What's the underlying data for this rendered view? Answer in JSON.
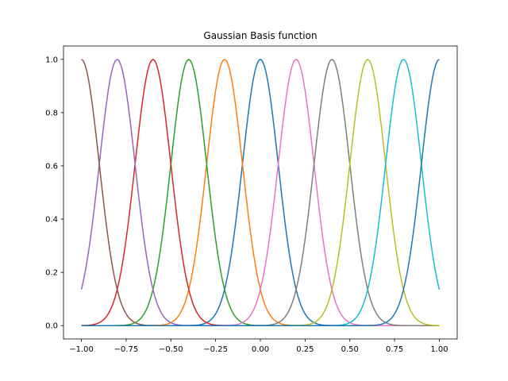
{
  "chart_data": {
    "type": "line",
    "title": "Gaussian Basis function",
    "xlabel": "",
    "ylabel": "",
    "xlim": [
      -1.1,
      1.1
    ],
    "ylim": [
      -0.05,
      1.05
    ],
    "x_ticks": [
      -1.0,
      -0.75,
      -0.5,
      -0.25,
      0.0,
      0.25,
      0.5,
      0.75,
      1.0
    ],
    "x_tick_labels": [
      "−1.00",
      "−0.75",
      "−0.50",
      "−0.25",
      "0.00",
      "0.25",
      "0.50",
      "0.75",
      "1.00"
    ],
    "y_ticks": [
      0.0,
      0.2,
      0.4,
      0.6,
      0.8,
      1.0
    ],
    "y_tick_labels": [
      "0.0",
      "0.2",
      "0.4",
      "0.6",
      "0.8",
      "1.0"
    ],
    "grid": false,
    "legend": false,
    "x_range": [
      -1.0,
      1.0
    ],
    "basis_function": "exp(-(x-mu)^2 / (2*s^2))",
    "width_s": 0.1,
    "series": [
      {
        "mu": 0.0,
        "color": "#1f77b4"
      },
      {
        "mu": -0.2,
        "color": "#ff7f0e"
      },
      {
        "mu": -0.4,
        "color": "#2ca02c"
      },
      {
        "mu": -0.6,
        "color": "#d62728"
      },
      {
        "mu": -0.8,
        "color": "#9467bd"
      },
      {
        "mu": -1.0,
        "color": "#8c564b"
      },
      {
        "mu": 0.2,
        "color": "#e377c2"
      },
      {
        "mu": 0.4,
        "color": "#7f7f7f"
      },
      {
        "mu": 0.6,
        "color": "#bcbd22"
      },
      {
        "mu": 0.8,
        "color": "#17becf"
      },
      {
        "mu": 1.0,
        "color": "#1f77b4"
      }
    ]
  }
}
